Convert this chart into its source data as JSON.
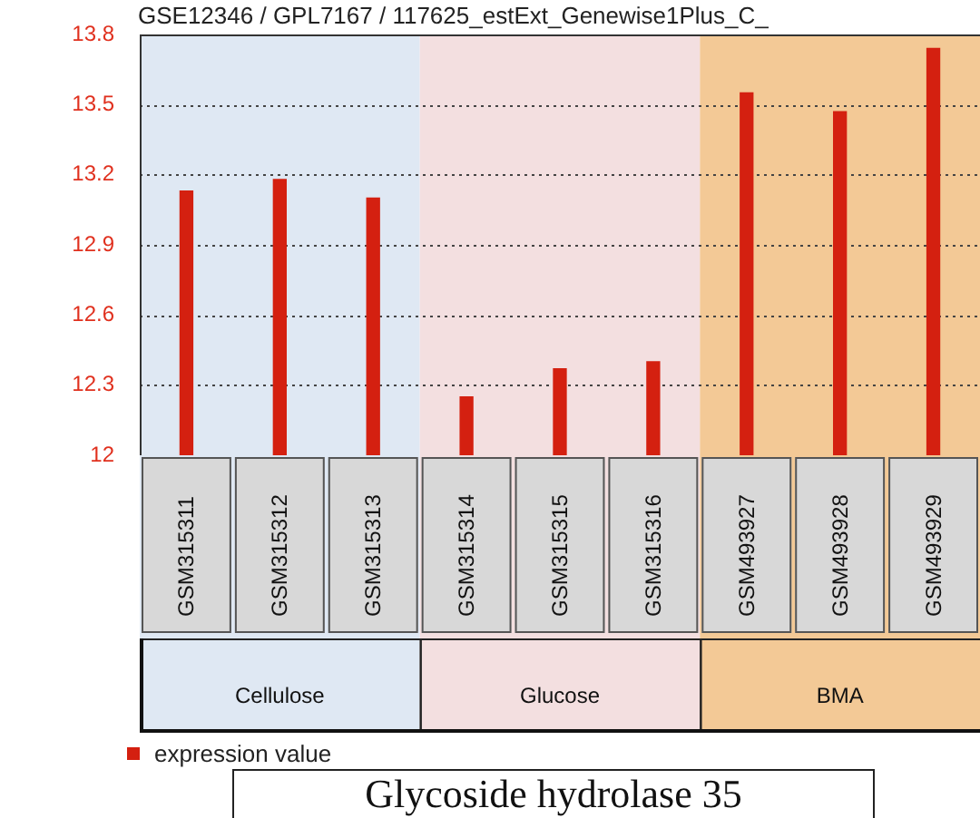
{
  "chart_data": {
    "type": "bar",
    "title": "GSE12346 / GPL7167 / 117625_estExt_Genewise1Plus_C_",
    "categories": [
      "GSM315311",
      "GSM315312",
      "GSM315313",
      "GSM315314",
      "GSM315315",
      "GSM315316",
      "GSM493927",
      "GSM493928",
      "GSM493929"
    ],
    "series": [
      {
        "name": "expression value",
        "color": "#d42010",
        "values": [
          13.13,
          13.18,
          13.1,
          12.25,
          12.37,
          12.4,
          13.55,
          13.47,
          13.74
        ]
      }
    ],
    "ylim": [
      12,
      13.8
    ],
    "yticks": [
      12,
      12.3,
      12.6,
      12.9,
      13.2,
      13.5,
      13.8
    ],
    "grid": "y",
    "legend": "bottom left",
    "bands": [
      {
        "axis": "x",
        "from": "GSM315311",
        "to": "GSM315313",
        "label": "Cellulose",
        "color": "#dfe8f3"
      },
      {
        "axis": "x",
        "from": "GSM315314",
        "to": "GSM315316",
        "label": "Glucose",
        "color": "#f3dfe0"
      },
      {
        "axis": "x",
        "from": "GSM493927",
        "to": "GSM493929",
        "label": "BMA",
        "color": "#f3c996"
      }
    ],
    "annotations": [
      "Glycoside hydrolase 35"
    ]
  }
}
